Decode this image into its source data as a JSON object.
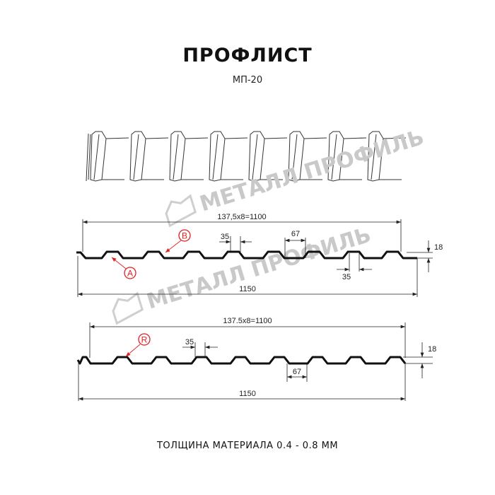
{
  "header": {
    "title": "ПРОФЛИСТ",
    "model": "МП-20"
  },
  "watermark": {
    "text": "МЕТАЛЛ ПРОФИЛЬ"
  },
  "profile_1": {
    "pitch_label": "137,5x8=1100",
    "total_width_label": "1150",
    "top_width_label": "35",
    "bottom_width_label": "35",
    "flange_label": "67",
    "height_label": "18",
    "marker_a": "A",
    "marker_b": "B"
  },
  "profile_2": {
    "pitch_label": "137.5x8=1100",
    "total_width_label": "1150",
    "top_width_label": "35",
    "flange_label": "67",
    "height_label": "18",
    "marker_r": "R"
  },
  "footer": {
    "thickness": "ТОЛЩИНА МАТЕРИАЛА 0.4 - 0.8 ММ"
  },
  "colors": {
    "line": "#111111",
    "marker": "#e02020",
    "watermark": "#c9c9c9"
  }
}
